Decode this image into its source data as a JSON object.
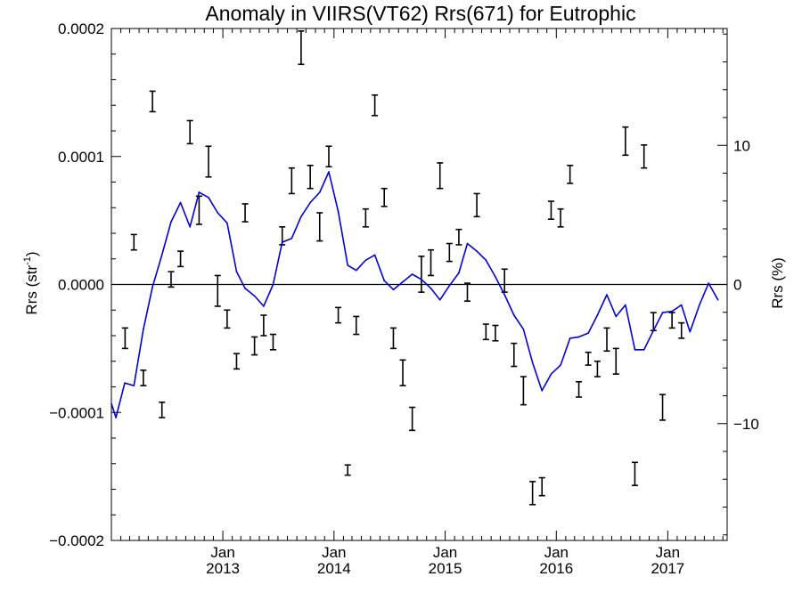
{
  "chart_data": {
    "type": "line",
    "title": "Anomaly in VIIRS(VT62) Rrs(671) for Eutrophic",
    "ylabel": "Rrs (str",
    "ylabel_sup": "-1",
    "ylabel_close": ")",
    "y2label": "Rrs (%)",
    "ylim": [
      -0.0002,
      0.0002
    ],
    "y2lim": [
      -18.4,
      18.4
    ],
    "xlim": [
      "2012-01-01",
      "2017-07-15"
    ],
    "grid": false,
    "legend": "none",
    "yticks": [
      {
        "value": 0.0002,
        "label": "0.0002"
      },
      {
        "value": 0.0001,
        "label": "0.0001"
      },
      {
        "value": 0.0,
        "label": "0.0000"
      },
      {
        "value": -0.0001,
        "label": "−0.0001"
      },
      {
        "value": -0.0002,
        "label": "−0.0002"
      }
    ],
    "y2ticks": [
      {
        "value": 10,
        "label": "10"
      },
      {
        "value": 0,
        "label": "0"
      },
      {
        "value": -10,
        "label": "−10"
      }
    ],
    "xticks": [
      {
        "date": "2013-01-01",
        "label": "Jan",
        "year": "2013"
      },
      {
        "date": "2014-01-01",
        "label": "Jan",
        "year": "2014"
      },
      {
        "date": "2015-01-01",
        "label": "Jan",
        "year": "2015"
      },
      {
        "date": "2016-01-01",
        "label": "Jan",
        "year": "2016"
      },
      {
        "date": "2017-01-01",
        "label": "Jan",
        "year": "2017"
      }
    ],
    "reference_line": {
      "y": 0,
      "color": "#000000"
    },
    "line_series": {
      "color": "#0000dd",
      "points": [
        [
          "2012-01-01",
          -9.3e-05
        ],
        [
          "2012-01-16",
          -0.000104
        ],
        [
          "2012-02-14",
          -7.7e-05
        ],
        [
          "2012-03-15",
          -7.9e-05
        ],
        [
          "2012-04-15",
          -3.5e-05
        ],
        [
          "2012-05-15",
          -2e-06
        ],
        [
          "2012-06-15",
          2.3e-05
        ],
        [
          "2012-07-15",
          4.9e-05
        ],
        [
          "2012-08-15",
          6.4e-05
        ],
        [
          "2012-09-15",
          4.5e-05
        ],
        [
          "2012-10-15",
          7.2e-05
        ],
        [
          "2012-11-15",
          6.8e-05
        ],
        [
          "2012-12-15",
          5.6e-05
        ],
        [
          "2013-01-15",
          4.8e-05
        ],
        [
          "2013-02-15",
          1e-05
        ],
        [
          "2013-03-15",
          -3e-06
        ],
        [
          "2013-04-15",
          -9e-06
        ],
        [
          "2013-05-15",
          -1.7e-05
        ],
        [
          "2013-06-15",
          0.0
        ],
        [
          "2013-07-15",
          3.3e-05
        ],
        [
          "2013-08-15",
          3.6e-05
        ],
        [
          "2013-09-15",
          5.3e-05
        ],
        [
          "2013-10-15",
          6.4e-05
        ],
        [
          "2013-11-15",
          7.2e-05
        ],
        [
          "2013-12-15",
          8.8e-05
        ],
        [
          "2014-01-15",
          5.7e-05
        ],
        [
          "2014-02-15",
          1.5e-05
        ],
        [
          "2014-03-15",
          1.1e-05
        ],
        [
          "2014-04-15",
          1.9e-05
        ],
        [
          "2014-05-15",
          2.3e-05
        ],
        [
          "2014-06-15",
          3e-06
        ],
        [
          "2014-07-15",
          -4e-06
        ],
        [
          "2014-08-15",
          2e-06
        ],
        [
          "2014-09-15",
          8e-06
        ],
        [
          "2014-10-15",
          4e-06
        ],
        [
          "2014-11-15",
          -3e-06
        ],
        [
          "2014-12-15",
          -1.2e-05
        ],
        [
          "2015-01-15",
          -1e-06
        ],
        [
          "2015-02-15",
          9e-06
        ],
        [
          "2015-03-15",
          3.2e-05
        ],
        [
          "2015-04-15",
          2.6e-05
        ],
        [
          "2015-05-15",
          1.9e-05
        ],
        [
          "2015-06-15",
          6e-06
        ],
        [
          "2015-07-15",
          -8e-06
        ],
        [
          "2015-08-15",
          -2.4e-05
        ],
        [
          "2015-09-15",
          -3.5e-05
        ],
        [
          "2015-10-15",
          -6.1e-05
        ],
        [
          "2015-11-15",
          -8.3e-05
        ],
        [
          "2015-12-15",
          -7e-05
        ],
        [
          "2016-01-15",
          -6.3e-05
        ],
        [
          "2016-02-15",
          -4.2e-05
        ],
        [
          "2016-03-15",
          -4.1e-05
        ],
        [
          "2016-04-15",
          -3.8e-05
        ],
        [
          "2016-05-15",
          -2.4e-05
        ],
        [
          "2016-06-15",
          -8e-06
        ],
        [
          "2016-07-15",
          -2.5e-05
        ],
        [
          "2016-08-15",
          -1.6e-05
        ],
        [
          "2016-09-15",
          -5.1e-05
        ],
        [
          "2016-10-15",
          -5.1e-05
        ],
        [
          "2016-11-15",
          -3.6e-05
        ],
        [
          "2016-12-15",
          -2.2e-05
        ],
        [
          "2017-01-15",
          -2.1e-05
        ],
        [
          "2017-02-15",
          -1.6e-05
        ],
        [
          "2017-03-15",
          -3.7e-05
        ],
        [
          "2017-04-15",
          -1.6e-05
        ],
        [
          "2017-05-15",
          1e-06
        ],
        [
          "2017-06-15",
          -1.2e-05
        ]
      ]
    },
    "error_bars": {
      "color": "#000000",
      "points": [
        [
          "2012-02-15",
          -4.2e-05,
          8e-06
        ],
        [
          "2012-03-15",
          3.3e-05,
          6e-06
        ],
        [
          "2012-04-15",
          -7.3e-05,
          6e-06
        ],
        [
          "2012-05-15",
          0.000143,
          8e-06
        ],
        [
          "2012-06-15",
          -9.8e-05,
          6e-06
        ],
        [
          "2012-07-15",
          4e-06,
          6e-06
        ],
        [
          "2012-08-15",
          2e-05,
          6e-06
        ],
        [
          "2012-09-15",
          0.000119,
          9e-06
        ],
        [
          "2012-10-15",
          5.8e-05,
          1.1e-05
        ],
        [
          "2012-11-15",
          9.6e-05,
          1.2e-05
        ],
        [
          "2012-12-15",
          -5e-06,
          1.2e-05
        ],
        [
          "2013-01-15",
          -2.7e-05,
          7e-06
        ],
        [
          "2013-02-15",
          -6e-05,
          6e-06
        ],
        [
          "2013-03-15",
          5.6e-05,
          7e-06
        ],
        [
          "2013-04-15",
          -4.8e-05,
          7e-06
        ],
        [
          "2013-05-15",
          -3.2e-05,
          8e-06
        ],
        [
          "2013-06-15",
          -4.5e-05,
          6e-06
        ],
        [
          "2013-07-15",
          3.8e-05,
          7e-06
        ],
        [
          "2013-08-15",
          8.1e-05,
          1e-05
        ],
        [
          "2013-09-15",
          0.000185,
          1.3e-05
        ],
        [
          "2013-10-15",
          8.4e-05,
          9e-06
        ],
        [
          "2013-11-15",
          4.5e-05,
          1.1e-05
        ],
        [
          "2013-12-15",
          0.0001,
          8e-06
        ],
        [
          "2014-01-15",
          -2.4e-05,
          6e-06
        ],
        [
          "2014-02-15",
          -0.000145,
          4e-06
        ],
        [
          "2014-03-15",
          -3.2e-05,
          7e-06
        ],
        [
          "2014-04-15",
          5.2e-05,
          7e-06
        ],
        [
          "2014-05-15",
          0.00014,
          8e-06
        ],
        [
          "2014-06-15",
          6.8e-05,
          7e-06
        ],
        [
          "2014-07-15",
          -4.2e-05,
          8e-06
        ],
        [
          "2014-08-15",
          -6.9e-05,
          1e-05
        ],
        [
          "2014-09-15",
          -0.000105,
          9e-06
        ],
        [
          "2014-10-15",
          8e-06,
          1.4e-05
        ],
        [
          "2014-11-15",
          1.7e-05,
          1e-05
        ],
        [
          "2014-12-15",
          8.5e-05,
          1e-05
        ],
        [
          "2015-01-15",
          2.5e-05,
          7e-06
        ],
        [
          "2015-02-15",
          3.7e-05,
          6e-06
        ],
        [
          "2015-03-15",
          -6e-06,
          7e-06
        ],
        [
          "2015-04-15",
          6.2e-05,
          9e-06
        ],
        [
          "2015-05-15",
          -3.7e-05,
          6e-06
        ],
        [
          "2015-06-15",
          -3.8e-05,
          6e-06
        ],
        [
          "2015-07-15",
          3e-06,
          9e-06
        ],
        [
          "2015-08-15",
          -5.5e-05,
          9e-06
        ],
        [
          "2015-09-15",
          -8.3e-05,
          1.1e-05
        ],
        [
          "2015-10-15",
          -0.000163,
          9e-06
        ],
        [
          "2015-11-15",
          -0.000158,
          7e-06
        ],
        [
          "2015-12-15",
          5.8e-05,
          7e-06
        ],
        [
          "2016-01-15",
          5.2e-05,
          7e-06
        ],
        [
          "2016-02-15",
          8.6e-05,
          7e-06
        ],
        [
          "2016-03-15",
          -8.2e-05,
          6e-06
        ],
        [
          "2016-04-15",
          -5.8e-05,
          5e-06
        ],
        [
          "2016-05-15",
          -6.6e-05,
          6e-06
        ],
        [
          "2016-06-15",
          -4.3e-05,
          9e-06
        ],
        [
          "2016-07-15",
          -6e-05,
          1e-05
        ],
        [
          "2016-08-15",
          0.000112,
          1.1e-05
        ],
        [
          "2016-09-15",
          -0.000148,
          9e-06
        ],
        [
          "2016-10-15",
          0.0001,
          9e-06
        ],
        [
          "2016-11-15",
          -2.9e-05,
          7e-06
        ],
        [
          "2016-12-15",
          -9.6e-05,
          1e-05
        ],
        [
          "2017-01-15",
          -2.8e-05,
          6e-06
        ],
        [
          "2017-02-15",
          -3.6e-05,
          6e-06
        ]
      ]
    }
  }
}
